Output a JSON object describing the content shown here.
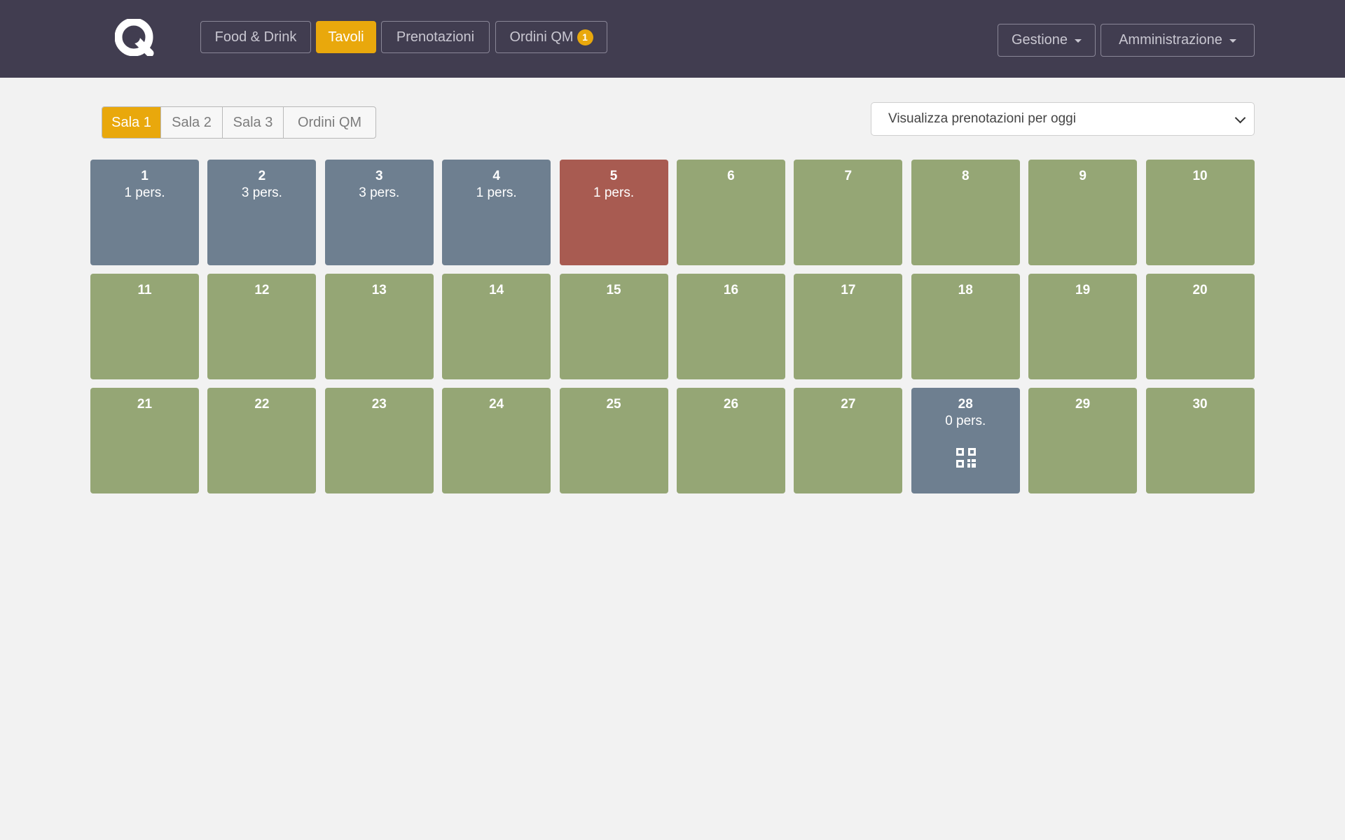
{
  "colors": {
    "navbar": "#413d50",
    "accent": "#e9a80c",
    "free": "#95a675",
    "occupied": "#6e7f90",
    "alert": "#a85b51"
  },
  "navbar": {
    "logo_icon": "q-logo-icon",
    "buttons": [
      "Food & Drink",
      "Tavoli",
      "Prenotazioni",
      "Ordini QM"
    ],
    "active": "Tavoli",
    "ordini_badge": "1",
    "gestione": "Gestione",
    "amministrazione": "Amministrazione"
  },
  "tabs": [
    "Sala 1",
    "Sala 2",
    "Sala 3",
    "Ordini QM"
  ],
  "active_tab": "Sala 1",
  "select": {
    "value": "Visualizza prenotazioni per oggi"
  },
  "tables": [
    {
      "n": "1",
      "pers": "1 pers.",
      "status": "occupied"
    },
    {
      "n": "2",
      "pers": "3 pers.",
      "status": "occupied"
    },
    {
      "n": "3",
      "pers": "3 pers.",
      "status": "occupied"
    },
    {
      "n": "4",
      "pers": "1 pers.",
      "status": "occupied"
    },
    {
      "n": "5",
      "pers": "1 pers.",
      "status": "alert"
    },
    {
      "n": "6",
      "pers": "",
      "status": "free"
    },
    {
      "n": "7",
      "pers": "",
      "status": "free"
    },
    {
      "n": "8",
      "pers": "",
      "status": "free"
    },
    {
      "n": "9",
      "pers": "",
      "status": "free"
    },
    {
      "n": "10",
      "pers": "",
      "status": "free"
    },
    {
      "n": "11",
      "pers": "",
      "status": "free"
    },
    {
      "n": "12",
      "pers": "",
      "status": "free"
    },
    {
      "n": "13",
      "pers": "",
      "status": "free"
    },
    {
      "n": "14",
      "pers": "",
      "status": "free"
    },
    {
      "n": "15",
      "pers": "",
      "status": "free"
    },
    {
      "n": "16",
      "pers": "",
      "status": "free"
    },
    {
      "n": "17",
      "pers": "",
      "status": "free"
    },
    {
      "n": "18",
      "pers": "",
      "status": "free"
    },
    {
      "n": "19",
      "pers": "",
      "status": "free"
    },
    {
      "n": "20",
      "pers": "",
      "status": "free"
    },
    {
      "n": "21",
      "pers": "",
      "status": "free"
    },
    {
      "n": "22",
      "pers": "",
      "status": "free"
    },
    {
      "n": "23",
      "pers": "",
      "status": "free"
    },
    {
      "n": "24",
      "pers": "",
      "status": "free"
    },
    {
      "n": "25",
      "pers": "",
      "status": "free"
    },
    {
      "n": "26",
      "pers": "",
      "status": "free"
    },
    {
      "n": "27",
      "pers": "",
      "status": "free"
    },
    {
      "n": "28",
      "pers": "0 pers.",
      "status": "occupied",
      "icon": "qr-code-icon"
    },
    {
      "n": "29",
      "pers": "",
      "status": "free"
    },
    {
      "n": "30",
      "pers": "",
      "status": "free"
    }
  ]
}
